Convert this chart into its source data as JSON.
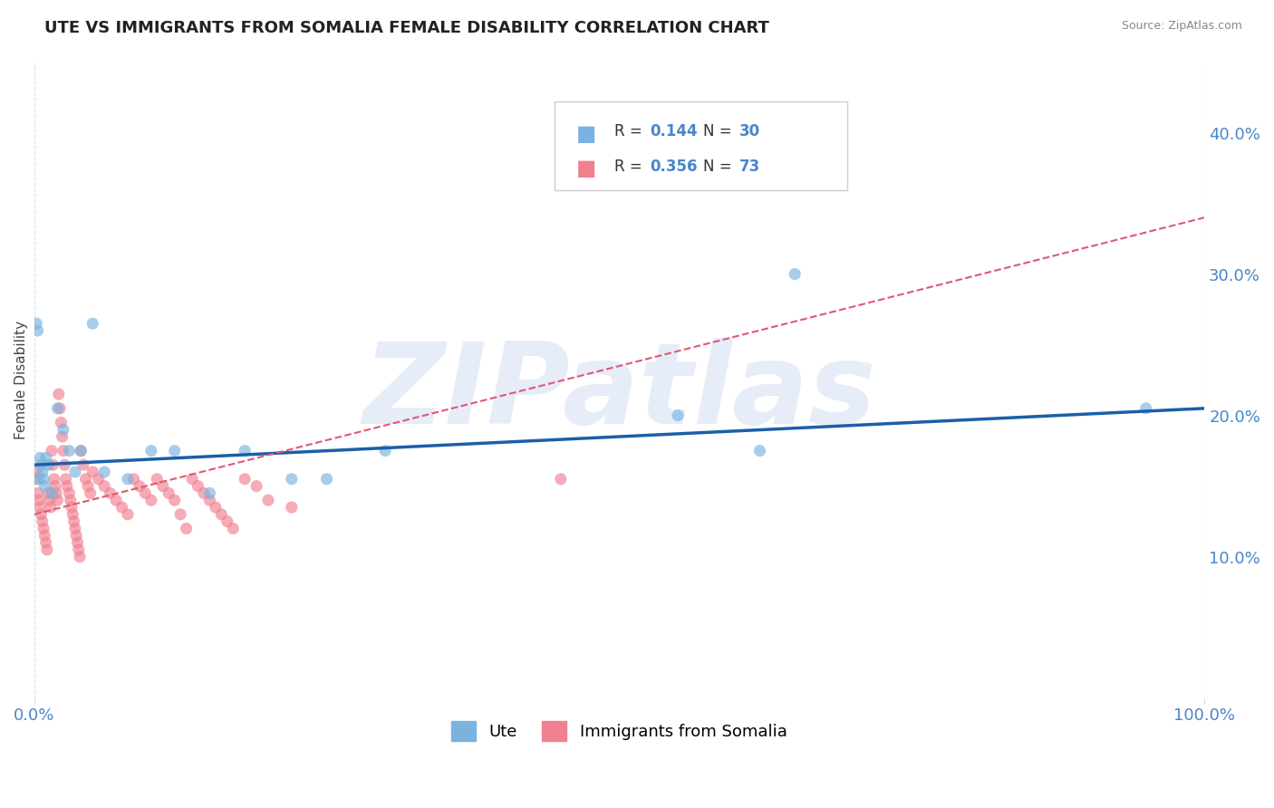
{
  "title": "UTE VS IMMIGRANTS FROM SOMALIA FEMALE DISABILITY CORRELATION CHART",
  "source": "Source: ZipAtlas.com",
  "ylabel": "Female Disability",
  "legend_labels": [
    "Ute",
    "Immigrants from Somalia"
  ],
  "ute_x": [
    0.002,
    0.003,
    0.004,
    0.005,
    0.006,
    0.007,
    0.008,
    0.009,
    0.01,
    0.012,
    0.015,
    0.02,
    0.025,
    0.03,
    0.035,
    0.04,
    0.05,
    0.06,
    0.08,
    0.1,
    0.12,
    0.15,
    0.18,
    0.22,
    0.25,
    0.3,
    0.55,
    0.62,
    0.65,
    0.95
  ],
  "ute_y": [
    0.265,
    0.26,
    0.155,
    0.17,
    0.165,
    0.16,
    0.155,
    0.15,
    0.17,
    0.165,
    0.145,
    0.205,
    0.19,
    0.175,
    0.16,
    0.175,
    0.265,
    0.16,
    0.155,
    0.175,
    0.175,
    0.145,
    0.175,
    0.155,
    0.155,
    0.175,
    0.2,
    0.175,
    0.3,
    0.205
  ],
  "somalia_x": [
    0.001,
    0.002,
    0.003,
    0.004,
    0.005,
    0.006,
    0.007,
    0.008,
    0.009,
    0.01,
    0.011,
    0.012,
    0.013,
    0.014,
    0.015,
    0.016,
    0.017,
    0.018,
    0.019,
    0.02,
    0.021,
    0.022,
    0.023,
    0.024,
    0.025,
    0.026,
    0.027,
    0.028,
    0.03,
    0.031,
    0.032,
    0.033,
    0.034,
    0.035,
    0.036,
    0.037,
    0.038,
    0.039,
    0.04,
    0.042,
    0.044,
    0.046,
    0.048,
    0.05,
    0.055,
    0.06,
    0.065,
    0.07,
    0.075,
    0.08,
    0.085,
    0.09,
    0.095,
    0.1,
    0.105,
    0.11,
    0.115,
    0.12,
    0.125,
    0.13,
    0.135,
    0.14,
    0.145,
    0.15,
    0.155,
    0.16,
    0.165,
    0.17,
    0.18,
    0.19,
    0.2,
    0.22,
    0.45
  ],
  "somalia_y": [
    0.155,
    0.16,
    0.145,
    0.14,
    0.135,
    0.13,
    0.125,
    0.12,
    0.115,
    0.11,
    0.105,
    0.145,
    0.14,
    0.135,
    0.175,
    0.165,
    0.155,
    0.15,
    0.145,
    0.14,
    0.215,
    0.205,
    0.195,
    0.185,
    0.175,
    0.165,
    0.155,
    0.15,
    0.145,
    0.14,
    0.135,
    0.13,
    0.125,
    0.12,
    0.115,
    0.11,
    0.105,
    0.1,
    0.175,
    0.165,
    0.155,
    0.15,
    0.145,
    0.16,
    0.155,
    0.15,
    0.145,
    0.14,
    0.135,
    0.13,
    0.155,
    0.15,
    0.145,
    0.14,
    0.155,
    0.15,
    0.145,
    0.14,
    0.13,
    0.12,
    0.155,
    0.15,
    0.145,
    0.14,
    0.135,
    0.13,
    0.125,
    0.12,
    0.155,
    0.15,
    0.14,
    0.135,
    0.155
  ],
  "xlim": [
    0.0,
    1.0
  ],
  "ylim": [
    0.0,
    0.45
  ],
  "yticks": [
    0.1,
    0.2,
    0.3,
    0.4
  ],
  "ytick_labels": [
    "10.0%",
    "20.0%",
    "30.0%",
    "40.0%"
  ],
  "xtick_labels": [
    "0.0%",
    "100.0%"
  ],
  "ute_color": "#7ab3e0",
  "somalia_color": "#f08090",
  "ute_line_color": "#1a5fa8",
  "somalia_line_color": "#e05878",
  "watermark_text": "ZIPatlas",
  "background_color": "#ffffff",
  "tick_color": "#4a86c8",
  "grid_color": "#d0ddf0",
  "r_n_color": "#4a86c8",
  "title_color": "#222222",
  "source_color": "#888888"
}
